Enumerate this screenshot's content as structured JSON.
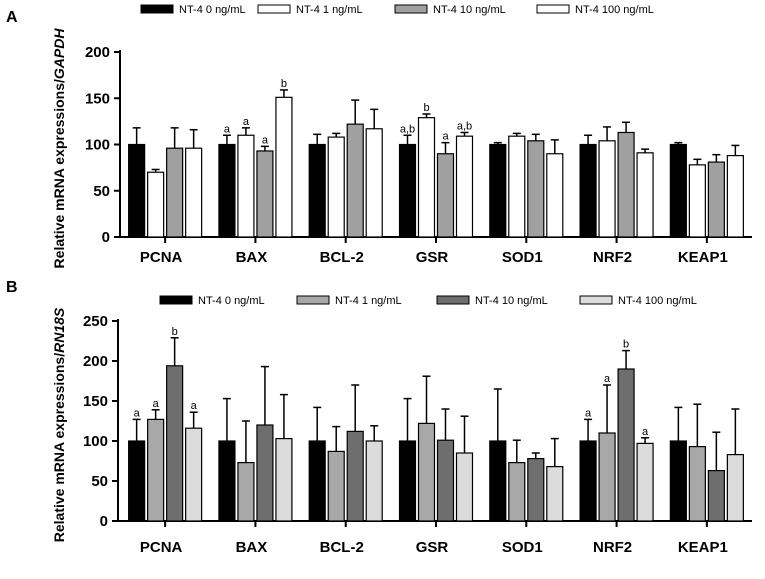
{
  "figure": {
    "panel_labels": [
      "A",
      "B"
    ]
  },
  "chart_data": [
    {
      "type": "bar",
      "panel": "A",
      "title": "",
      "xlabel": "",
      "ylabel": "Relative mRNA expressions/GAPDH",
      "ylabel_prefix": "Relative mRNA expressions/",
      "ylabel_gene": "GAPDH",
      "ylim": [
        0,
        200
      ],
      "yticks": [
        0,
        50,
        100,
        150,
        200
      ],
      "grid": false,
      "legend_position": "top",
      "categories": [
        "PCNA",
        "BAX",
        "BCL-2",
        "GSR",
        "SOD1",
        "NRF2",
        "KEAP1"
      ],
      "series": [
        {
          "name": "NT-4 0 ng/mL",
          "color": "#000000",
          "values": [
            100,
            100,
            100,
            100,
            100,
            100,
            100
          ],
          "errors": [
            18,
            10,
            11,
            10,
            2,
            10,
            2
          ],
          "labels": [
            "",
            "a",
            "",
            "a,b",
            "",
            "",
            ""
          ]
        },
        {
          "name": "NT-4 1 ng/mL",
          "color": "#ffffff",
          "values": [
            70,
            110,
            108,
            129,
            109,
            104,
            78
          ],
          "errors": [
            3,
            8,
            4,
            4,
            3,
            15,
            6
          ],
          "labels": [
            "",
            "a",
            "",
            "b",
            "",
            "",
            ""
          ]
        },
        {
          "name": "NT-4 10 ng/mL",
          "color": "#a0a0a0",
          "values": [
            96,
            93,
            122,
            90,
            104,
            113,
            81
          ],
          "errors": [
            22,
            5,
            26,
            12,
            7,
            11,
            8
          ],
          "labels": [
            "",
            "a",
            "",
            "a",
            "",
            "",
            ""
          ]
        },
        {
          "name": "NT-4 100 ng/mL",
          "color": "#ffffff",
          "values": [
            96,
            151,
            117,
            109,
            90,
            91,
            88
          ],
          "errors": [
            20,
            8,
            21,
            4,
            15,
            4,
            11
          ],
          "labels": [
            "",
            "b",
            "",
            "a,b",
            "",
            "",
            ""
          ]
        }
      ]
    },
    {
      "type": "bar",
      "panel": "B",
      "title": "",
      "xlabel": "",
      "ylabel": "Relative mRNA expressions/RN18S",
      "ylabel_prefix": "Relative mRNA expressions/",
      "ylabel_gene": "RN18S",
      "ylim": [
        0,
        250
      ],
      "yticks": [
        0,
        50,
        100,
        150,
        200,
        250
      ],
      "grid": false,
      "legend_position": "top",
      "categories": [
        "PCNA",
        "BAX",
        "BCL-2",
        "GSR",
        "SOD1",
        "NRF2",
        "KEAP1"
      ],
      "series": [
        {
          "name": "NT-4 0 ng/mL",
          "color": "#000000",
          "values": [
            100,
            100,
            100,
            100,
            100,
            100,
            100
          ],
          "errors": [
            27,
            53,
            42,
            53,
            65,
            27,
            42
          ],
          "labels": [
            "a",
            "",
            "",
            "",
            "",
            "a",
            ""
          ]
        },
        {
          "name": "NT-4 1 ng/mL",
          "color": "#a8a8a8",
          "values": [
            127,
            73,
            87,
            122,
            73,
            110,
            93
          ],
          "errors": [
            12,
            52,
            31,
            59,
            28,
            60,
            53
          ],
          "labels": [
            "a",
            "",
            "",
            "",
            "",
            "a",
            ""
          ]
        },
        {
          "name": "NT-4 10 ng/mL",
          "color": "#6e6e6e",
          "values": [
            194,
            120,
            112,
            101,
            78,
            190,
            63
          ],
          "errors": [
            35,
            73,
            58,
            39,
            7,
            23,
            48
          ],
          "labels": [
            "b",
            "",
            "",
            "",
            "",
            "b",
            ""
          ]
        },
        {
          "name": "NT-4 100 ng/mL",
          "color": "#dcdcdc",
          "values": [
            116,
            103,
            100,
            85,
            68,
            97,
            83
          ],
          "errors": [
            20,
            55,
            19,
            46,
            35,
            7,
            57
          ],
          "labels": [
            "a",
            "",
            "",
            "",
            "",
            "a",
            ""
          ]
        }
      ]
    }
  ]
}
